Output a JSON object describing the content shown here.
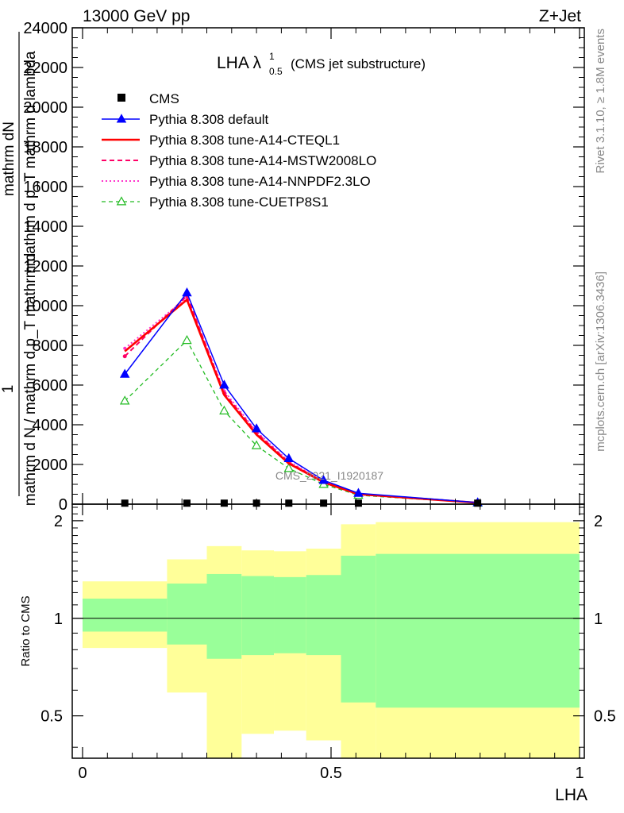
{
  "header": {
    "left": "13000 GeV pp",
    "right": "Z+Jet",
    "side_right_top": "Rivet 3.1.10, ≥ 1.8M events",
    "side_right_bottom": "mcplots.cern.ch [arXiv:1306.3436]",
    "watermark": "CMS_2021_I1920187"
  },
  "colors": {
    "cms": "#000000",
    "default": "#0000ff",
    "a14_cteql1": "#ff0000",
    "a14_mstw": "#ff0066",
    "a14_nnpdf": "#ff33cc",
    "cuetp8s1": "#22bb22",
    "band_inner": "#99ff99",
    "band_outer": "#ffff99"
  },
  "chart_data": [
    {
      "type": "line",
      "title_main": "LHA λ",
      "title_sup": "1",
      "title_sub": "0.5",
      "title_note": "(CMS jet substructure)",
      "ylabel_lines": [
        "mathrm dN",
        "mathrm d p_T mathrm d lambda",
        "1",
        "mathrm d N / mathrm d p_T mathrm d"
      ],
      "xlim": [
        0,
        1
      ],
      "ylim": [
        0,
        24000
      ],
      "yticks": [
        0,
        2000,
        4000,
        6000,
        8000,
        10000,
        12000,
        14000,
        16000,
        18000,
        20000,
        22000,
        24000
      ],
      "ytick_labels": [
        "0",
        "2000",
        "4000",
        "6000",
        "8000",
        "10000",
        "12000",
        "14000",
        "16000",
        "18000",
        "20000",
        "22000",
        "24000"
      ],
      "x": [
        0.085,
        0.21,
        0.285,
        0.35,
        0.415,
        0.485,
        0.555,
        0.795
      ],
      "series": [
        {
          "name": "CMS",
          "key": "cms",
          "style": "points",
          "values": [
            50,
            50,
            50,
            50,
            50,
            50,
            50,
            50
          ]
        },
        {
          "name": "Pythia 8.308 default",
          "key": "default",
          "style": "solid-triangle",
          "values": [
            6550,
            10650,
            6000,
            3800,
            2300,
            1200,
            550,
            80
          ]
        },
        {
          "name": "Pythia 8.308 tune-A14-CTEQL1",
          "key": "a14_cteql1",
          "style": "solid-thick",
          "values": [
            7700,
            10300,
            5500,
            3500,
            2050,
            1100,
            500,
            70
          ]
        },
        {
          "name": "Pythia 8.308 tune-A14-MSTW2008LO",
          "key": "a14_mstw",
          "style": "dashed-dots",
          "values": [
            7450,
            10500,
            5600,
            3600,
            2100,
            1130,
            510,
            75
          ]
        },
        {
          "name": "Pythia 8.308 tune-A14-NNPDF2.3LO",
          "key": "a14_nnpdf",
          "style": "dotted",
          "values": [
            7850,
            10400,
            5700,
            3650,
            2150,
            1150,
            520,
            75
          ]
        },
        {
          "name": "Pythia 8.308 tune-CUETP8S1",
          "key": "cuetp8s1",
          "style": "dashed-open-triangle",
          "values": [
            5200,
            8250,
            4700,
            2950,
            1800,
            1000,
            450,
            60
          ]
        }
      ]
    },
    {
      "type": "area",
      "ylabel": "Ratio to CMS",
      "xlabel": "LHA",
      "xlim": [
        0,
        1
      ],
      "ylim": [
        0.37,
        2.25
      ],
      "xticks": [
        0,
        0.5,
        1
      ],
      "xtick_labels": [
        "0",
        "0.5",
        "1"
      ],
      "yticks": [
        0.5,
        1,
        2
      ],
      "ytick_labels": [
        "0.5",
        "1",
        "2"
      ],
      "bins": [
        {
          "lo": 0.0,
          "hi": 0.17,
          "inner": [
            0.91,
            1.15
          ],
          "outer": [
            0.81,
            1.3
          ]
        },
        {
          "lo": 0.17,
          "hi": 0.25,
          "inner": [
            0.83,
            1.28
          ],
          "outer": [
            0.59,
            1.52
          ]
        },
        {
          "lo": 0.25,
          "hi": 0.32,
          "inner": [
            0.75,
            1.37
          ],
          "outer": [
            0.37,
            1.67
          ]
        },
        {
          "lo": 0.32,
          "hi": 0.385,
          "inner": [
            0.77,
            1.35
          ],
          "outer": [
            0.44,
            1.62
          ]
        },
        {
          "lo": 0.385,
          "hi": 0.45,
          "inner": [
            0.78,
            1.34
          ],
          "outer": [
            0.45,
            1.61
          ]
        },
        {
          "lo": 0.45,
          "hi": 0.52,
          "inner": [
            0.77,
            1.36
          ],
          "outer": [
            0.42,
            1.64
          ]
        },
        {
          "lo": 0.52,
          "hi": 0.59,
          "inner": [
            0.55,
            1.56
          ],
          "outer": [
            0.37,
            1.95
          ]
        },
        {
          "lo": 0.59,
          "hi": 1.0,
          "inner": [
            0.53,
            1.58
          ],
          "outer": [
            0.37,
            1.98
          ]
        }
      ]
    }
  ]
}
